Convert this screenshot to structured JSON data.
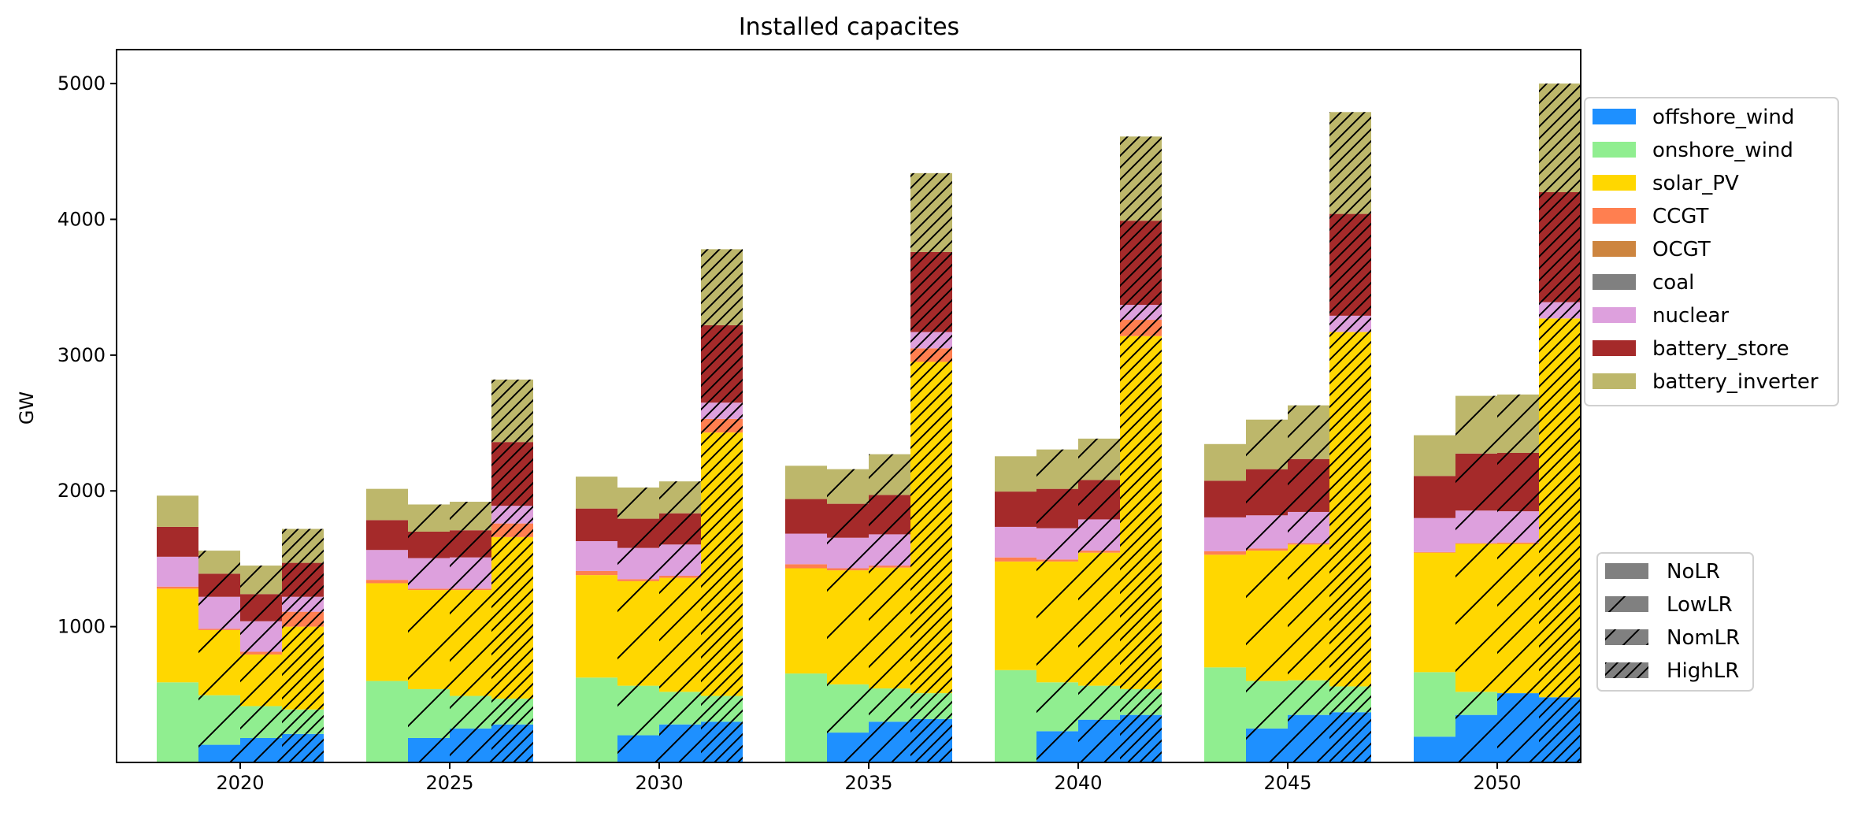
{
  "chart_data": {
    "type": "bar",
    "stacked": true,
    "title": "Installed capacites",
    "xlabel": "",
    "ylabel": "GW",
    "ylim": [
      0,
      5250
    ],
    "y_ticks": [
      1000,
      2000,
      3000,
      4000,
      5000
    ],
    "categories": [
      "2020",
      "2025",
      "2030",
      "2035",
      "2040",
      "2045",
      "2050"
    ],
    "scenarios": [
      "NoLR",
      "LowLR",
      "NomLR",
      "HighLR"
    ],
    "technologies": [
      "offshore_wind",
      "onshore_wind",
      "solar_PV",
      "CCGT",
      "OCGT",
      "coal",
      "nuclear",
      "battery_store",
      "battery_inverter"
    ],
    "colors": {
      "offshore_wind": "#1e90ff",
      "onshore_wind": "#90ee90",
      "solar_PV": "#ffd700",
      "CCGT": "#ff7f50",
      "OCGT": "#cd853f",
      "coal": "#808080",
      "nuclear": "#dda0dd",
      "battery_store": "#a52a2a",
      "battery_inverter": "#bdb76b"
    },
    "legend_technologies_position": "right-top",
    "legend_scenarios_position": "right-bottom",
    "grid": false,
    "values": {
      "NoLR": {
        "offshore_wind": [
          0,
          0,
          0,
          0,
          0,
          0,
          190
        ],
        "onshore_wind": [
          590,
          600,
          625,
          655,
          680,
          700,
          475
        ],
        "solar_PV": [
          690,
          720,
          755,
          775,
          800,
          830,
          880
        ],
        "CCGT": [
          15,
          25,
          30,
          30,
          30,
          25,
          5
        ],
        "OCGT": [
          0,
          0,
          0,
          0,
          0,
          0,
          0
        ],
        "coal": [
          0,
          0,
          0,
          0,
          0,
          0,
          0
        ],
        "nuclear": [
          220,
          220,
          220,
          225,
          225,
          250,
          250
        ],
        "battery_store": [
          220,
          220,
          240,
          255,
          260,
          270,
          310
        ],
        "battery_inverter": [
          230,
          230,
          235,
          245,
          260,
          270,
          300
        ]
      },
      "LowLR": {
        "offshore_wind": [
          130,
          180,
          200,
          220,
          230,
          250,
          350
        ],
        "onshore_wind": [
          365,
          360,
          365,
          355,
          360,
          350,
          170
        ],
        "solar_PV": [
          480,
          730,
          770,
          840,
          890,
          960,
          1090
        ],
        "CCGT": [
          10,
          10,
          15,
          15,
          15,
          15,
          5
        ],
        "OCGT": [
          0,
          0,
          0,
          0,
          0,
          0,
          0
        ],
        "coal": [
          0,
          0,
          0,
          0,
          0,
          0,
          0
        ],
        "nuclear": [
          235,
          225,
          230,
          225,
          230,
          245,
          240
        ],
        "battery_store": [
          170,
          195,
          215,
          250,
          290,
          340,
          420
        ],
        "battery_inverter": [
          170,
          200,
          230,
          255,
          290,
          365,
          425
        ]
      },
      "NomLR": {
        "offshore_wind": [
          180,
          250,
          280,
          300,
          315,
          350,
          510
        ],
        "onshore_wind": [
          235,
          240,
          240,
          245,
          250,
          255,
          0
        ],
        "solar_PV": [
          380,
          780,
          840,
          890,
          980,
          1000,
          1100
        ],
        "CCGT": [
          20,
          10,
          15,
          15,
          15,
          10,
          10
        ],
        "OCGT": [
          0,
          0,
          0,
          0,
          0,
          0,
          0
        ],
        "coal": [
          0,
          0,
          0,
          0,
          0,
          0,
          0
        ],
        "nuclear": [
          225,
          230,
          230,
          230,
          230,
          230,
          230
        ],
        "battery_store": [
          200,
          200,
          230,
          290,
          290,
          390,
          430
        ],
        "battery_inverter": [
          210,
          210,
          235,
          300,
          305,
          395,
          430
        ]
      },
      "HighLR": {
        "offshore_wind": [
          210,
          280,
          300,
          320,
          350,
          370,
          480
        ],
        "onshore_wind": [
          180,
          190,
          190,
          190,
          190,
          190,
          0
        ],
        "solar_PV": [
          610,
          1190,
          1940,
          2440,
          2600,
          2610,
          2790
        ],
        "CCGT": [
          110,
          100,
          100,
          100,
          120,
          0,
          0
        ],
        "OCGT": [
          0,
          0,
          0,
          0,
          0,
          0,
          0
        ],
        "coal": [
          0,
          0,
          0,
          0,
          0,
          0,
          0
        ],
        "nuclear": [
          110,
          130,
          120,
          120,
          110,
          120,
          120
        ],
        "battery_store": [
          250,
          470,
          570,
          590,
          620,
          750,
          810
        ],
        "battery_inverter": [
          250,
          460,
          560,
          580,
          620,
          750,
          800
        ]
      }
    }
  }
}
